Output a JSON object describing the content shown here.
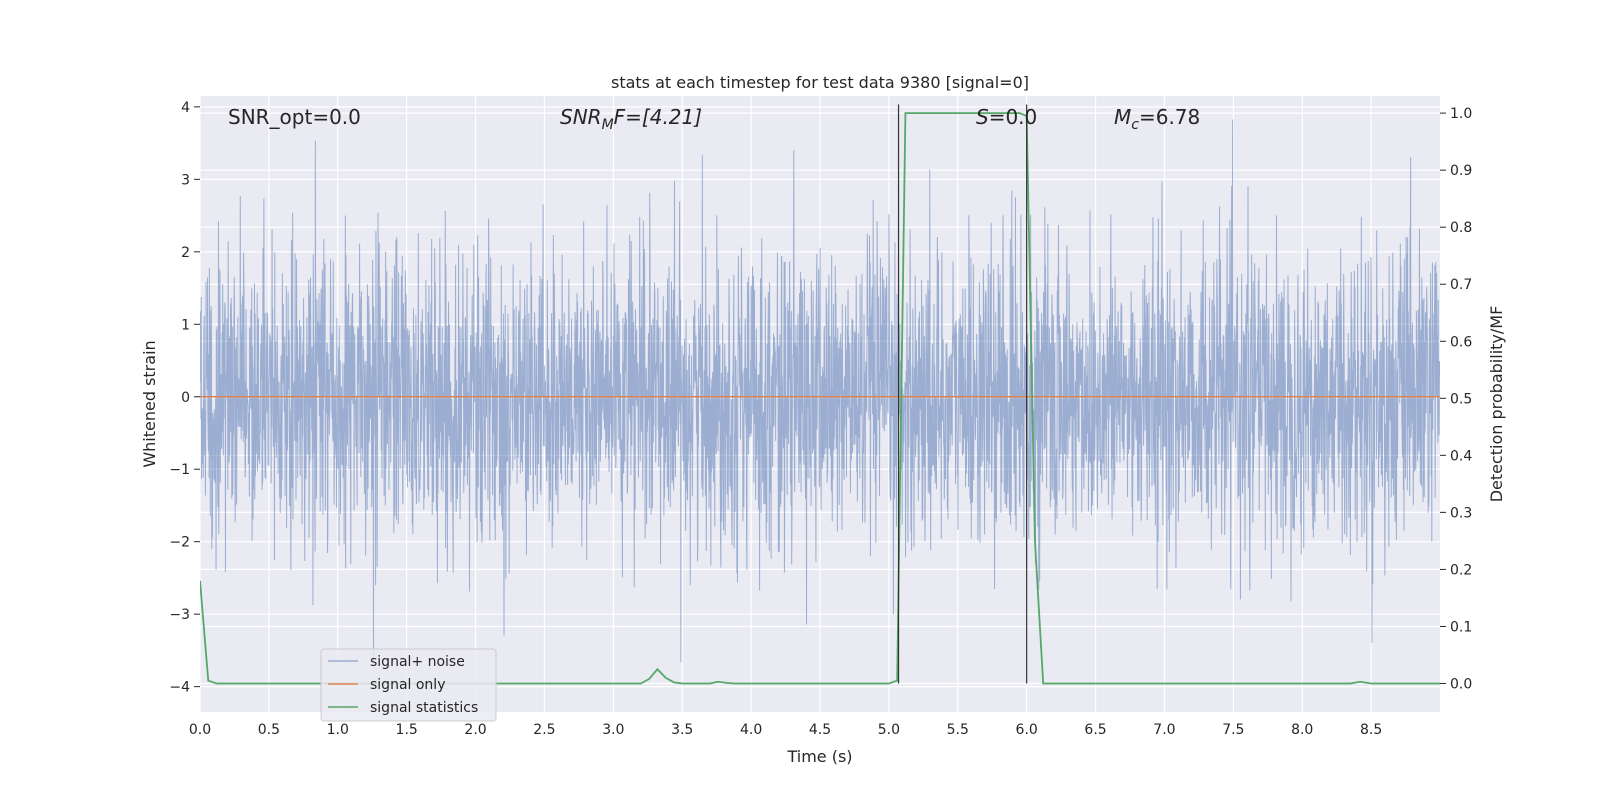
{
  "chart_data": {
    "type": "line",
    "title": "stats at each timestep for test data 9380 [signal=0]",
    "xlabel": "Time (s)",
    "ylabel": "Whitened strain",
    "ylabel_right": "Detection probability/MF",
    "xlim": [
      0.0,
      9.0
    ],
    "ylim": [
      -4.35,
      4.15
    ],
    "ylim_right": [
      -0.05,
      1.03
    ],
    "x_ticks": [
      0.0,
      0.5,
      1.0,
      1.5,
      2.0,
      2.5,
      3.0,
      3.5,
      4.0,
      4.5,
      5.0,
      5.5,
      6.0,
      6.5,
      7.0,
      7.5,
      8.0,
      8.5
    ],
    "x_tick_labels": [
      "0.0",
      "0.5",
      "1.0",
      "1.5",
      "2.0",
      "2.5",
      "3.0",
      "3.5",
      "4.0",
      "4.5",
      "5.0",
      "5.5",
      "6.0",
      "6.5",
      "7.0",
      "7.5",
      "8.0",
      "8.5"
    ],
    "y_ticks": [
      -4,
      -3,
      -2,
      -1,
      0,
      1,
      2,
      3,
      4
    ],
    "y_tick_labels": [
      "−4",
      "−3",
      "−2",
      "−1",
      "0",
      "1",
      "2",
      "3",
      "4"
    ],
    "y_ticks_right": [
      0.0,
      0.1,
      0.2,
      0.3,
      0.4,
      0.5,
      0.6,
      0.7,
      0.8,
      0.9,
      1.0
    ],
    "y_tick_labels_right": [
      "0.0",
      "0.1",
      "0.2",
      "0.3",
      "0.4",
      "0.5",
      "0.6",
      "0.7",
      "0.8",
      "0.9",
      "1.0"
    ],
    "grid": true,
    "legend_position": "lower-left",
    "annotations": {
      "snr_opt": "SNR_opt=0.0",
      "snr_mf_name": "SNR",
      "snr_mf_sub": "M",
      "snr_mf_rest": "F=[4.21]",
      "s_name": "S",
      "s_rest": "=0.0",
      "mc_name": "M",
      "mc_sub": "c",
      "mc_rest": "=6.78"
    },
    "vertical_lines": [
      5.07,
      6.0
    ],
    "series": [
      {
        "name": "signal+ noise",
        "color": "#4c72b0",
        "axis": "left",
        "noise_sigma": 1.0,
        "samples": 4096,
        "seed": 9380
      },
      {
        "name": "signal only",
        "color": "#dd8452",
        "axis": "left",
        "x": [
          0.0,
          9.0
        ],
        "y": [
          0.0,
          0.0
        ]
      },
      {
        "name": "signal statistics",
        "color": "#55a868",
        "axis": "right",
        "x": [
          0.0,
          0.06,
          0.12,
          0.5,
          1.0,
          1.5,
          2.0,
          2.5,
          3.0,
          3.2,
          3.26,
          3.32,
          3.38,
          3.44,
          3.5,
          3.7,
          3.76,
          3.82,
          3.88,
          4.0,
          4.5,
          5.0,
          5.06,
          5.12,
          5.5,
          5.95,
          6.0,
          6.06,
          6.12,
          6.5,
          7.0,
          7.5,
          8.0,
          8.35,
          8.42,
          8.5,
          9.0
        ],
        "y": [
          0.18,
          0.005,
          0.0,
          0.0,
          0.0,
          0.0,
          0.0,
          0.0,
          0.0,
          0.0,
          0.008,
          0.025,
          0.01,
          0.002,
          0.0,
          0.0,
          0.003,
          0.001,
          0.0,
          0.0,
          0.0,
          0.0,
          0.005,
          1.0,
          1.0,
          1.0,
          0.995,
          0.25,
          0.0,
          0.0,
          0.0,
          0.0,
          0.0,
          0.0,
          0.003,
          0.0,
          0.0
        ]
      }
    ]
  }
}
